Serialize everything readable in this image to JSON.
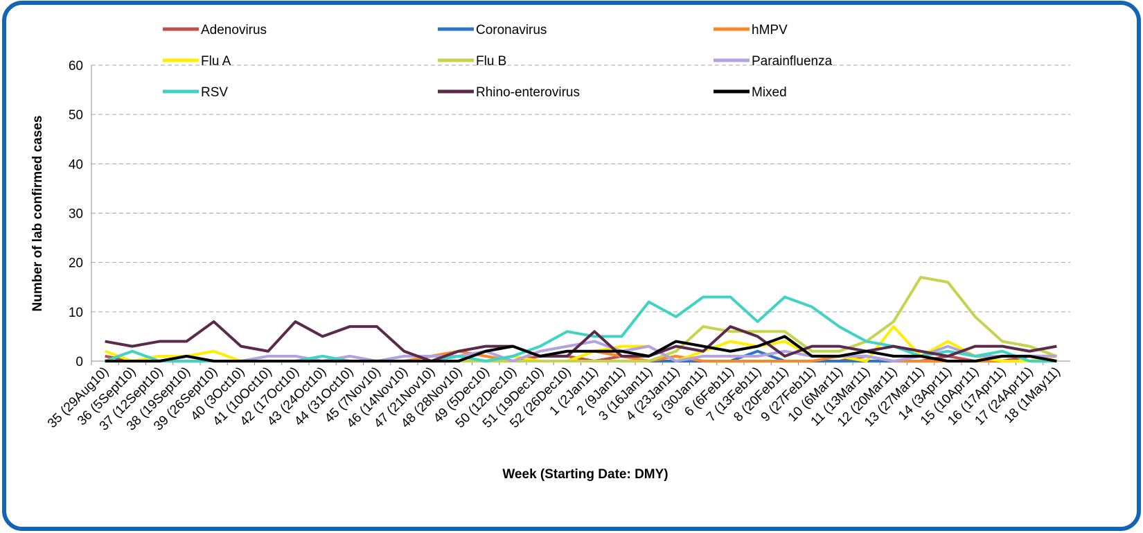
{
  "chart_data": {
    "type": "line",
    "x_label": "Week (Starting Date: DMY)",
    "y_label": "Number of lab confirmed cases",
    "categories": [
      "35 (29Aug10)",
      "36 (5Sept10)",
      "37 (12Sept10)",
      "38 (19Sept10)",
      "39 (26Sept10)",
      "40 (3Oct10)",
      "41 (10Oct10)",
      "42 (17Oct10)",
      "43 (24Oct10)",
      "44 (31Oct10)",
      "45 (7Nov10)",
      "46 (14Nov10)",
      "47 (21Nov10)",
      "48 (28Nov10)",
      "49 (5Dec10)",
      "50 (12Dec10)",
      "51 (19Dec10)",
      "52 (26Dec10)",
      "1 (2Jan11)",
      "2 (9Jan11)",
      "3 (16Jan11)",
      "4 (23Jan11)",
      "5 (30Jan11)",
      "6 (6Feb11)",
      "7 (13Feb11)",
      "8 (20Feb11)",
      "9 (27Feb11)",
      "10 (6Mar11)",
      "11 (13Mar11)",
      "12 (20Mar11)",
      "13 (27Mar11)",
      "14 (3Apr11)",
      "15 (10Apr11)",
      "16 (17Apr11)",
      "17 (24Apr11)",
      "18 (1May11)"
    ],
    "series": [
      {
        "name": "Adenovirus",
        "color": "#c0504d",
        "values": [
          1,
          0,
          0,
          0,
          0,
          0,
          0,
          0,
          0,
          0,
          0,
          0,
          0,
          0,
          0,
          0,
          1,
          1,
          0,
          1,
          0,
          0,
          0,
          0,
          0,
          0,
          0,
          0,
          1,
          0,
          0,
          1,
          0,
          0,
          1,
          1
        ]
      },
      {
        "name": "Coronavirus",
        "color": "#2e75c8",
        "values": [
          0,
          0,
          0,
          0,
          0,
          0,
          0,
          0,
          0,
          0,
          0,
          0,
          0,
          0,
          0,
          0,
          0,
          0,
          0,
          0,
          0,
          0,
          0,
          0,
          2,
          0,
          0,
          0,
          0,
          0,
          0,
          0,
          0,
          0,
          0,
          0
        ]
      },
      {
        "name": "hMPV",
        "color": "#f7892b",
        "values": [
          0,
          0,
          0,
          0,
          0,
          0,
          0,
          0,
          0,
          0,
          0,
          0,
          1,
          2,
          1,
          0,
          0,
          0,
          2,
          1,
          0,
          1,
          0,
          0,
          0,
          0,
          0,
          1,
          1,
          0,
          0,
          0,
          0,
          0,
          0,
          0
        ]
      },
      {
        "name": "Flu A",
        "color": "#ffee00",
        "values": [
          2,
          0,
          1,
          1,
          2,
          0,
          0,
          0,
          0,
          0,
          0,
          0,
          0,
          0,
          0,
          1,
          0,
          0,
          2,
          3,
          3,
          0,
          2,
          4,
          3,
          4,
          1,
          1,
          0,
          7,
          1,
          4,
          1,
          0,
          0,
          1
        ]
      },
      {
        "name": "Flu B",
        "color": "#c6d34f",
        "values": [
          0,
          0,
          0,
          0,
          0,
          0,
          0,
          0,
          0,
          0,
          0,
          0,
          0,
          0,
          0,
          0,
          0,
          0,
          0,
          0,
          0,
          2,
          7,
          6,
          6,
          6,
          2,
          2,
          4,
          8,
          17,
          16,
          9,
          4,
          3,
          1
        ]
      },
      {
        "name": "Parainfluenza",
        "color": "#b3a2e0",
        "values": [
          0,
          0,
          0,
          0,
          0,
          0,
          1,
          1,
          0,
          1,
          0,
          1,
          1,
          1,
          2,
          0,
          2,
          3,
          4,
          2,
          3,
          0,
          1,
          1,
          1,
          2,
          1,
          1,
          1,
          0,
          1,
          3,
          1,
          1,
          1,
          1
        ]
      },
      {
        "name": "RSV",
        "color": "#3fd3c3",
        "values": [
          0,
          2,
          0,
          0,
          0,
          0,
          0,
          0,
          1,
          0,
          0,
          0,
          0,
          1,
          0,
          1,
          3,
          6,
          5,
          5,
          12,
          9,
          13,
          13,
          8,
          13,
          11,
          7,
          4,
          3,
          1,
          2,
          1,
          2,
          0,
          0
        ]
      },
      {
        "name": "Rhino-enterovirus",
        "color": "#5b2a4a",
        "values": [
          4,
          3,
          4,
          4,
          8,
          3,
          2,
          8,
          5,
          7,
          7,
          2,
          0,
          2,
          3,
          3,
          1,
          1,
          6,
          1,
          1,
          3,
          2,
          7,
          5,
          1,
          3,
          3,
          2,
          3,
          2,
          1,
          3,
          3,
          2,
          3
        ]
      },
      {
        "name": "Mixed",
        "color": "#000000",
        "values": [
          0,
          0,
          0,
          1,
          0,
          0,
          0,
          0,
          0,
          0,
          0,
          0,
          0,
          0,
          2,
          3,
          1,
          2,
          2,
          2,
          1,
          4,
          3,
          2,
          3,
          5,
          1,
          1,
          2,
          1,
          1,
          0,
          0,
          1,
          1,
          0
        ]
      }
    ],
    "ylim": [
      0,
      60
    ],
    "yticks": [
      0,
      10,
      20,
      30,
      40,
      50,
      60
    ],
    "grid": true
  }
}
